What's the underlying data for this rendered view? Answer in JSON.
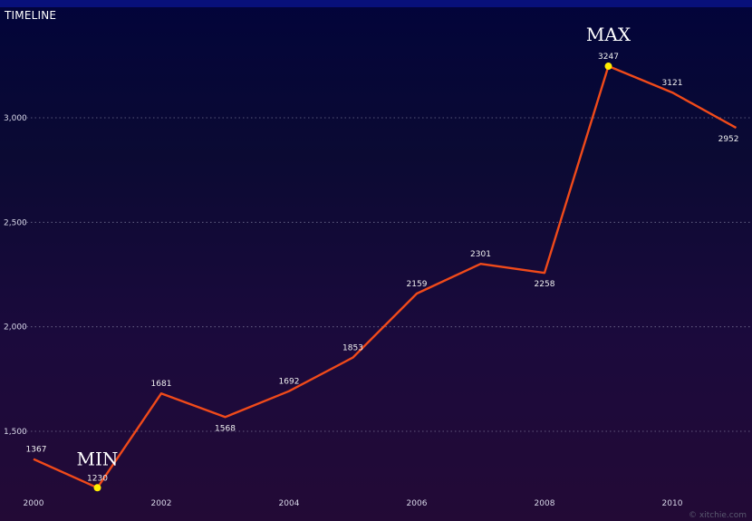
{
  "chart_data": {
    "type": "line",
    "title": "TIMELINE",
    "x": [
      2000,
      2001,
      2002,
      2003,
      2004,
      2005,
      2006,
      2007,
      2008,
      2009,
      2010,
      2011
    ],
    "values": [
      1367,
      1230,
      1681,
      1568,
      1692,
      1853,
      2159,
      2301,
      2258,
      3247,
      3121,
      2952
    ],
    "x_ticks": [
      "2000",
      "2002",
      "2004",
      "2006",
      "2008",
      "2010"
    ],
    "y_ticks": [
      "1,500",
      "2,000",
      "2,500",
      "3,000"
    ],
    "ylim": [
      1500,
      3000
    ],
    "annotations": [
      {
        "label": "MIN",
        "year": 2001
      },
      {
        "label": "MAX",
        "year": 2009
      }
    ],
    "grid": "horizontal-dotted",
    "line_color": "#f04a1a",
    "marker_color": "#ffee00"
  },
  "watermark": "© xitchie.com"
}
